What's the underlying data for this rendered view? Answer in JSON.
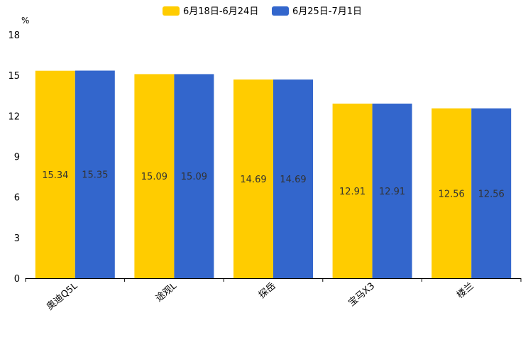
{
  "chart_data": {
    "type": "bar",
    "title": "",
    "xlabel": "",
    "ylabel": "%",
    "ylim": [
      0,
      18
    ],
    "yticks": [
      0,
      3,
      6,
      9,
      12,
      15,
      18
    ],
    "grid": false,
    "legend_position": "top",
    "categories": [
      "奥迪Q5L",
      "途观L",
      "探岳",
      "宝马X3",
      "楼兰"
    ],
    "series": [
      {
        "name": "6月18日-6月24日",
        "color": "#FFCC00",
        "values": [
          15.34,
          15.09,
          14.69,
          12.91,
          12.56
        ]
      },
      {
        "name": "6月25日-7月1日",
        "color": "#3366CC",
        "values": [
          15.35,
          15.09,
          14.69,
          12.91,
          12.56
        ]
      }
    ]
  }
}
